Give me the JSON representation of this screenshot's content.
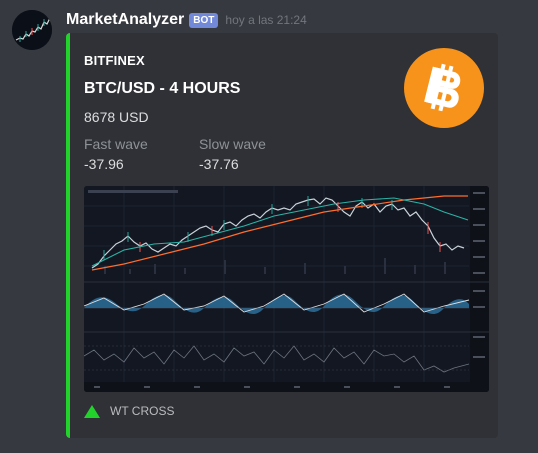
{
  "message": {
    "username": "MarketAnalyzer",
    "bot_tag": "BOT",
    "timestamp": "hoy a las 21:24"
  },
  "embed": {
    "accent_color": "#22d32c",
    "provider": "BITFINEX",
    "title": "BTC/USD - 4 HOURS",
    "description": "8678 USD",
    "fields": [
      {
        "name": "Fast wave",
        "value": "-37.96"
      },
      {
        "name": "Slow wave",
        "value": "-37.76"
      }
    ],
    "thumbnail_icon": "bitcoin-logo-icon",
    "thumbnail_color": "#f7931a",
    "footer": {
      "icon": "green-triangle-up-icon",
      "icon_color": "#22d32c",
      "text": "WT CROSS"
    }
  }
}
